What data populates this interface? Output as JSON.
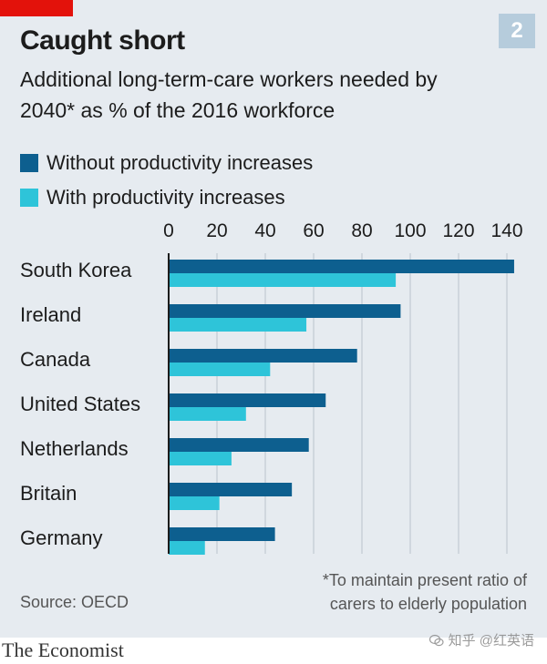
{
  "header": {
    "chart_number": "2",
    "title": "Caught short",
    "subtitle": "Additional long-term-care workers needed by 2040* as % of the 2016 workforce"
  },
  "colors": {
    "series_dark": "#0d5f8f",
    "series_light": "#2ec4d9",
    "accent_red": "#e3120b",
    "gridline": "#b9c3cc",
    "axis": "#1c1c1c"
  },
  "chart_data": {
    "type": "bar",
    "orientation": "horizontal",
    "title": "Caught short",
    "subtitle": "Additional long-term-care workers needed by 2040* as % of the 2016 workforce",
    "categories": [
      "South Korea",
      "Ireland",
      "Canada",
      "United States",
      "Netherlands",
      "Britain",
      "Germany"
    ],
    "series": [
      {
        "name": "Without productivity increases",
        "values": [
          143,
          96,
          78,
          65,
          58,
          51,
          44
        ]
      },
      {
        "name": "With productivity increases",
        "values": [
          94,
          57,
          42,
          32,
          26,
          21,
          15
        ]
      }
    ],
    "xlim": [
      0,
      145
    ],
    "xticks": [
      0,
      20,
      40,
      60,
      80,
      100,
      120,
      140
    ],
    "xlabel": "",
    "ylabel": "",
    "grid": true,
    "legend_position": "top-left"
  },
  "footer": {
    "footnote_line1": "*To maintain present ratio of",
    "footnote_line2": "carers to elderly population",
    "source": "Source: OECD",
    "brand": "The Economist",
    "watermark": "知乎 @红英语"
  }
}
